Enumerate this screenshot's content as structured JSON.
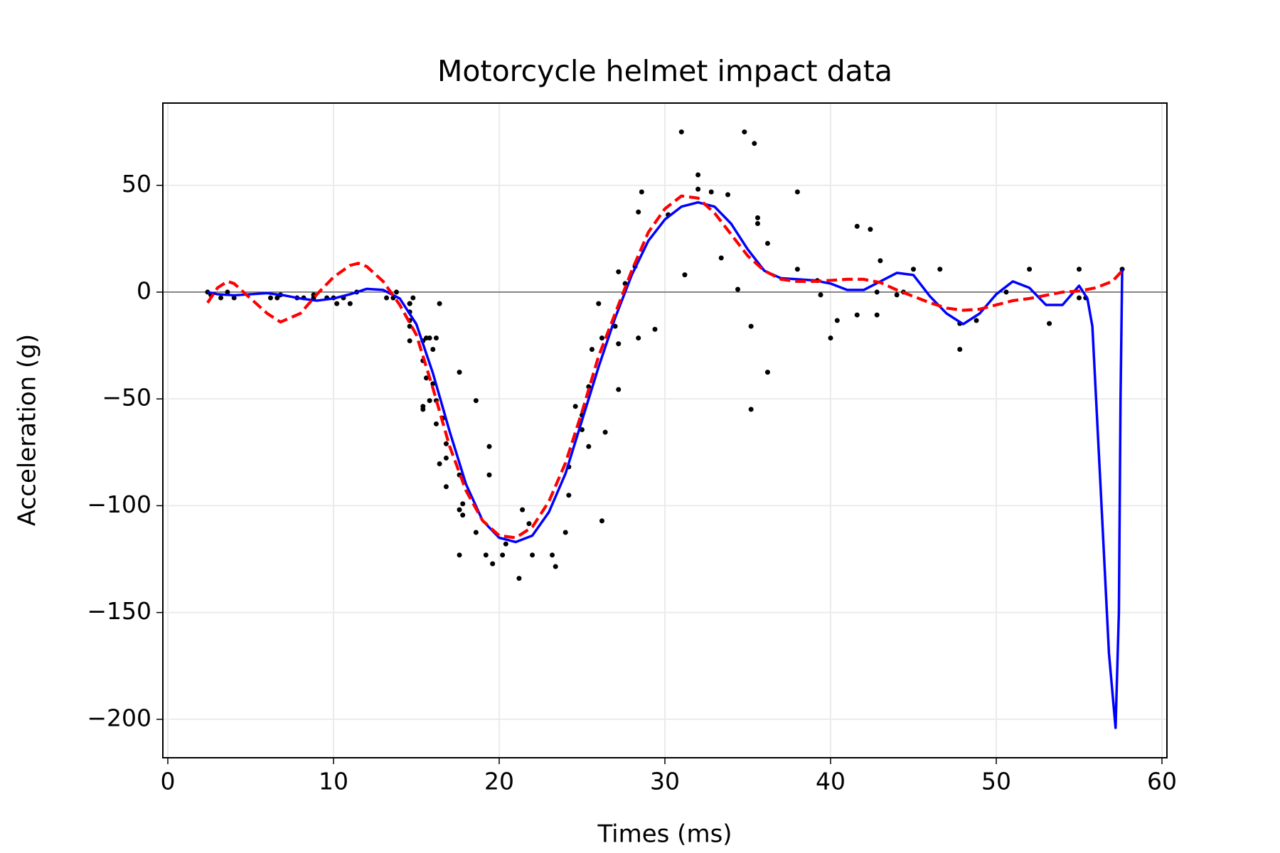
{
  "chart_data": {
    "type": "scatter",
    "title": "Motorcycle helmet impact data",
    "xlabel": "Times (ms)",
    "ylabel": "Acceleration (g)",
    "xlim": [
      -0.3,
      60.3
    ],
    "ylim": [
      -218,
      88.5
    ],
    "xticks": [
      0,
      10,
      20,
      30,
      40,
      50,
      60
    ],
    "yticks": [
      {
        "value": -200,
        "label": "−200"
      },
      {
        "value": -150,
        "label": "−150"
      },
      {
        "value": -100,
        "label": "−100"
      },
      {
        "value": -50,
        "label": "−50"
      },
      0,
      50
    ],
    "grid": true,
    "hline": 0,
    "series": [
      {
        "type": "scatter",
        "color": "#000000",
        "x": [
          2.4,
          2.6,
          3.2,
          3.6,
          4.0,
          6.2,
          6.6,
          6.8,
          7.8,
          8.2,
          8.8,
          8.8,
          9.6,
          10.0,
          10.2,
          10.6,
          11.0,
          11.4,
          13.2,
          13.6,
          13.8,
          14.6,
          14.6,
          14.6,
          14.6,
          14.6,
          14.6,
          14.8,
          15.4,
          15.4,
          15.4,
          15.4,
          15.6,
          15.6,
          15.8,
          15.8,
          16.0,
          16.0,
          16.2,
          16.2,
          16.2,
          16.4,
          16.4,
          16.6,
          16.8,
          16.8,
          16.8,
          17.6,
          17.6,
          17.6,
          17.6,
          17.8,
          17.8,
          18.6,
          18.6,
          19.2,
          19.4,
          19.4,
          19.6,
          20.2,
          20.4,
          21.2,
          21.4,
          21.8,
          22.0,
          23.2,
          23.4,
          24.0,
          24.2,
          24.2,
          24.6,
          25.0,
          25.0,
          25.4,
          25.4,
          25.6,
          26.0,
          26.2,
          26.2,
          26.4,
          27.0,
          27.2,
          27.2,
          27.2,
          27.6,
          28.2,
          28.4,
          28.4,
          28.6,
          29.4,
          30.2,
          31.0,
          31.2,
          32.0,
          32.0,
          32.8,
          33.4,
          33.8,
          34.4,
          34.8,
          35.2,
          35.2,
          35.4,
          35.6,
          35.6,
          36.2,
          36.2,
          38.0,
          38.0,
          39.2,
          39.4,
          40.0,
          40.4,
          41.6,
          41.6,
          42.4,
          42.8,
          42.8,
          43.0,
          44.0,
          44.4,
          45.0,
          46.6,
          47.8,
          47.8,
          48.8,
          50.6,
          52.0,
          53.2,
          55.0,
          55.0,
          55.4,
          57.6
        ],
        "values": [
          0.0,
          -1.3,
          -2.7,
          0.0,
          -2.7,
          -2.7,
          -2.7,
          -1.3,
          -2.7,
          -2.7,
          -1.3,
          -2.7,
          -2.7,
          -2.7,
          -5.4,
          -2.7,
          -5.4,
          0.0,
          -2.7,
          -2.7,
          0.0,
          -13.3,
          -5.4,
          -5.4,
          -9.3,
          -16.0,
          -22.8,
          -2.7,
          -22.8,
          -32.1,
          -53.5,
          -54.9,
          -40.2,
          -21.5,
          -21.5,
          -50.8,
          -42.9,
          -26.8,
          -21.5,
          -50.8,
          -61.7,
          -5.4,
          -80.4,
          -59.0,
          -71.0,
          -91.1,
          -77.7,
          -37.5,
          -85.6,
          -123.1,
          -101.9,
          -99.1,
          -104.4,
          -112.5,
          -50.8,
          -123.1,
          -85.6,
          -72.3,
          -127.2,
          -123.1,
          -117.9,
          -134.0,
          -101.9,
          -108.4,
          -123.1,
          -123.1,
          -128.5,
          -112.5,
          -95.1,
          -81.8,
          -53.5,
          -64.4,
          -57.6,
          -72.3,
          -44.3,
          -26.8,
          -5.4,
          -107.1,
          -21.5,
          -65.6,
          -16.0,
          -45.6,
          -24.2,
          9.5,
          4.0,
          12.0,
          -21.5,
          37.5,
          46.9,
          -17.4,
          36.2,
          75.0,
          8.1,
          54.9,
          48.2,
          46.9,
          16.0,
          45.6,
          1.3,
          75.0,
          -16.0,
          -54.9,
          69.6,
          34.8,
          32.1,
          -37.5,
          22.8,
          46.9,
          10.7,
          5.4,
          -1.3,
          -21.5,
          -13.3,
          30.8,
          -10.7,
          29.4,
          0.0,
          -10.7,
          14.7,
          -1.3,
          0.0,
          10.7,
          10.7,
          -26.8,
          -14.7,
          -13.3,
          0.0,
          10.7,
          -14.7,
          -2.7,
          10.7,
          -2.7,
          10.7
        ]
      },
      {
        "type": "line",
        "color": "#0000ff",
        "style": "solid",
        "x": [
          2.4,
          3,
          4,
          5,
          6,
          7,
          8,
          9,
          10,
          11,
          12,
          13,
          14,
          15,
          16,
          17,
          18,
          19,
          20,
          21,
          22,
          23,
          24,
          25,
          26,
          27,
          28,
          29,
          30,
          31,
          32,
          33,
          34,
          35,
          36,
          37,
          38,
          39,
          40,
          41,
          42,
          43,
          44,
          45,
          46,
          47,
          48,
          49,
          50,
          51,
          52,
          53,
          54,
          55,
          55.5,
          55.8,
          56.3,
          56.8,
          57.2,
          57.4,
          57.5,
          57.6
        ],
        "values": [
          0,
          -1,
          -1.5,
          -1,
          -0.5,
          -1.5,
          -3,
          -4,
          -3,
          -1,
          1.5,
          1,
          -3,
          -15,
          -38,
          -65,
          -90,
          -107,
          -115,
          -117,
          -114,
          -103,
          -85,
          -60,
          -35,
          -12,
          8,
          24,
          34,
          40,
          42,
          40,
          32,
          20,
          10,
          6.5,
          6,
          5.5,
          4,
          1,
          1,
          5,
          9,
          8,
          -2,
          -10,
          -15,
          -10,
          -1,
          5,
          2,
          -6,
          -6,
          3,
          -3,
          -16,
          -92,
          -169,
          -204,
          -150,
          -50,
          10.7
        ]
      },
      {
        "type": "line",
        "color": "#ff0000",
        "style": "dashed",
        "x": [
          2.4,
          3,
          3.6,
          4,
          5,
          6,
          6.8,
          8,
          9,
          10,
          11,
          11.5,
          12,
          13,
          14,
          15,
          16,
          17,
          18,
          19,
          20,
          21,
          22,
          23,
          24,
          25,
          26,
          27,
          28,
          29,
          30,
          31,
          32,
          33,
          34,
          35,
          36,
          37,
          38,
          39,
          40,
          41,
          42,
          43,
          44,
          45,
          46,
          47,
          48,
          49,
          50,
          51,
          52,
          53,
          54,
          55,
          56,
          57,
          57.6
        ],
        "values": [
          -5,
          2,
          5,
          4,
          -3,
          -10,
          -14,
          -10,
          -1,
          7,
          12.5,
          13.5,
          12,
          5,
          -6,
          -20,
          -45,
          -72,
          -93,
          -107,
          -114,
          -115,
          -110,
          -98,
          -80,
          -56,
          -30,
          -10,
          10,
          28,
          39,
          45,
          44,
          37,
          27,
          17,
          10,
          6,
          5,
          5,
          5.5,
          6,
          6,
          4.5,
          1,
          -2,
          -5,
          -7.5,
          -8.5,
          -8,
          -6,
          -4,
          -3,
          -1.5,
          0,
          0.5,
          2,
          5,
          10
        ]
      }
    ]
  }
}
